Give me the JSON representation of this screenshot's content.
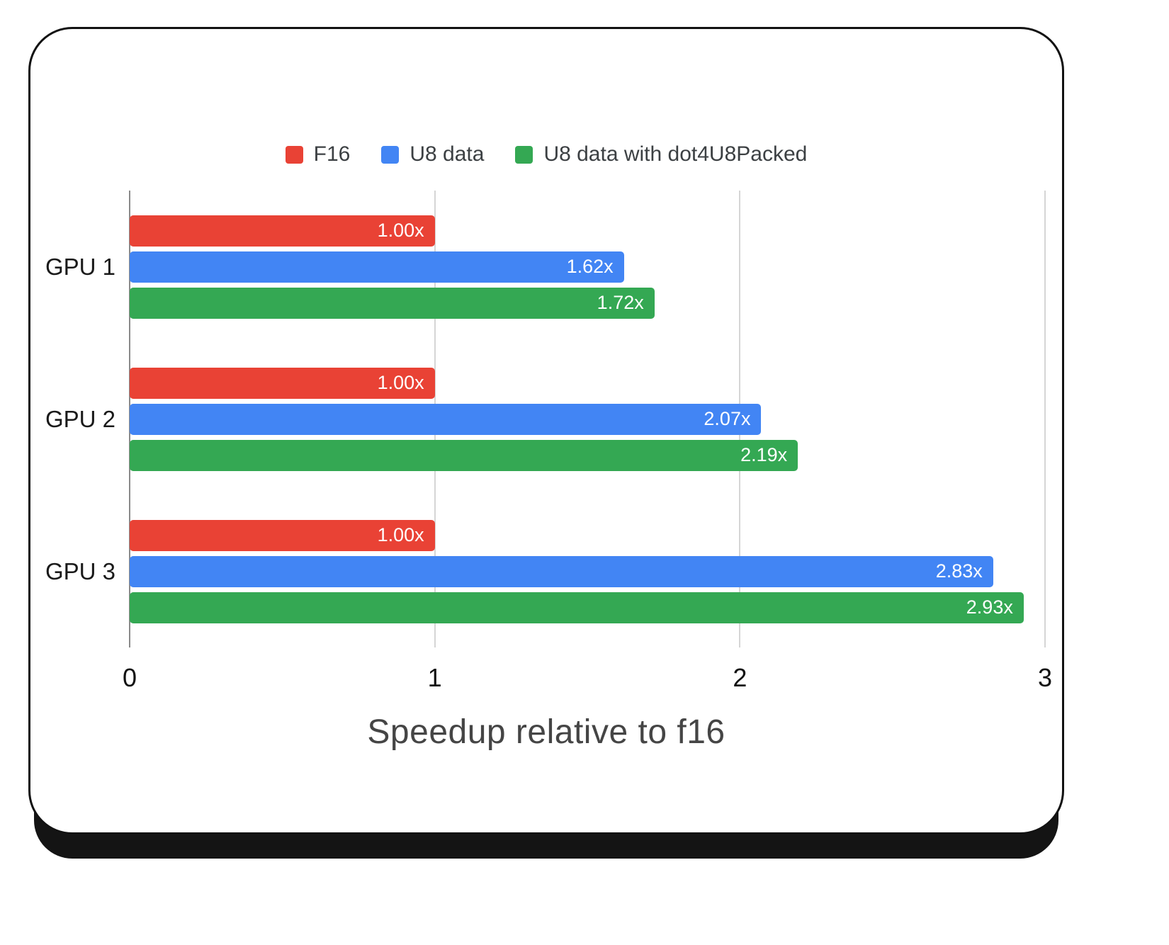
{
  "chart_data": {
    "type": "bar",
    "orientation": "horizontal",
    "title": "",
    "xlabel": "Speedup relative to f16",
    "ylabel": "",
    "categories": [
      "GPU 1",
      "GPU 2",
      "GPU 3"
    ],
    "series": [
      {
        "name": "F16",
        "color": "#e94235",
        "values": [
          1.0,
          1.0,
          1.0
        ],
        "labels": [
          "1.00x",
          "1.00x",
          "1.00x"
        ]
      },
      {
        "name": "U8 data",
        "color": "#4285f4",
        "values": [
          1.62,
          2.07,
          2.83
        ],
        "labels": [
          "1.62x",
          "2.07x",
          "2.83x"
        ]
      },
      {
        "name": "U8 data with dot4U8Packed",
        "color": "#34a853",
        "values": [
          1.72,
          2.19,
          2.93
        ],
        "labels": [
          "1.72x",
          "2.19x",
          "2.93x"
        ]
      }
    ],
    "xlim": [
      0,
      3
    ],
    "x_ticks": [
      0,
      1,
      2,
      3
    ],
    "grid": true,
    "legend_position": "top"
  }
}
